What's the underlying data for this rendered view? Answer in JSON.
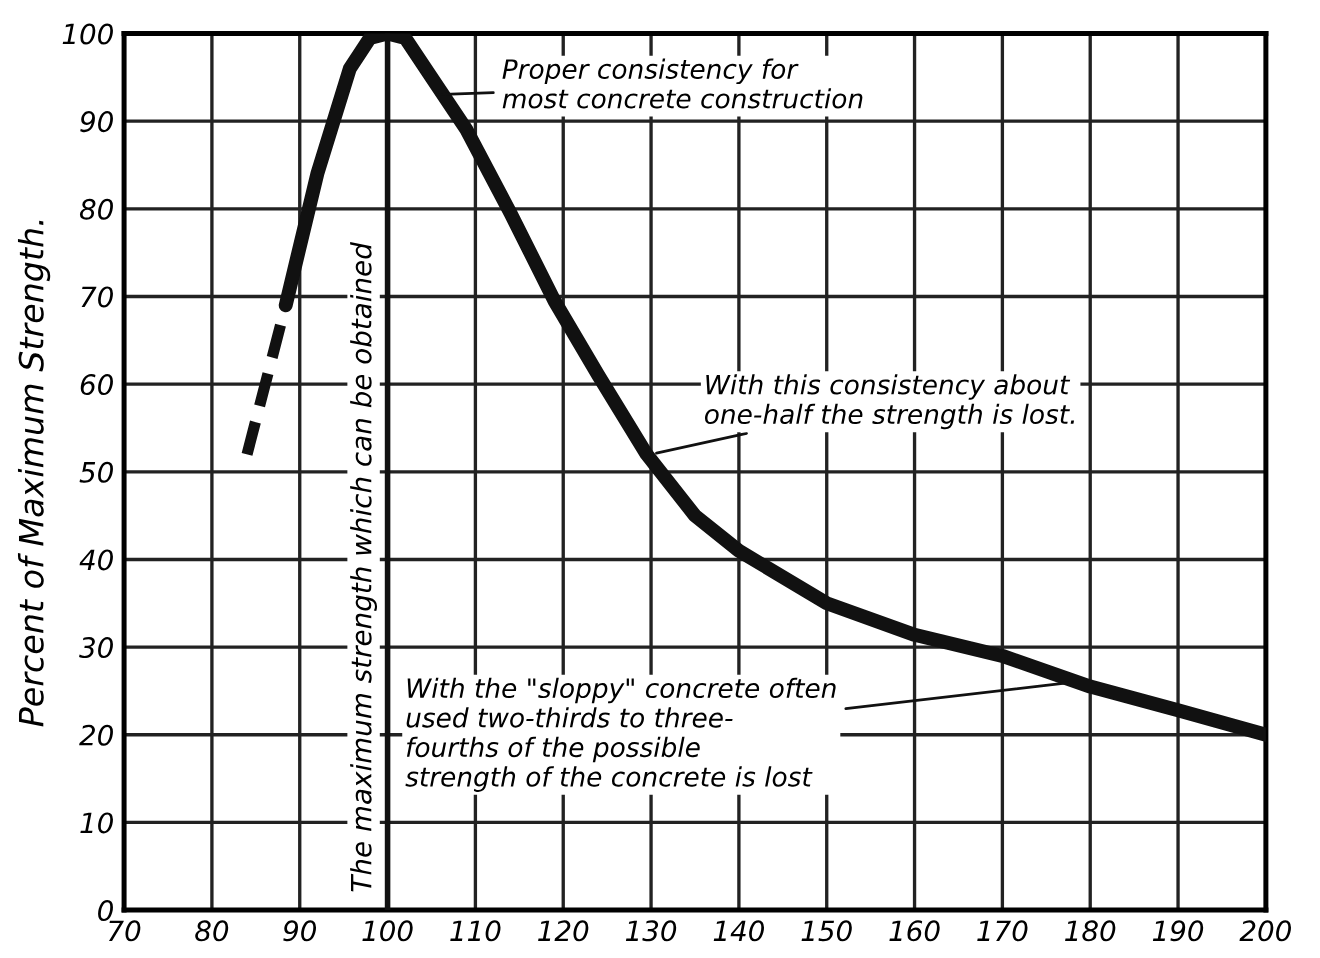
{
  "chart_data": {
    "type": "line",
    "ylabel": "Percent of Maximum Strength.",
    "xlim": [
      70,
      200
    ],
    "xticks": [
      70,
      80,
      90,
      100,
      110,
      120,
      130,
      140,
      150,
      160,
      170,
      180,
      190,
      200
    ],
    "ylim": [
      0,
      100
    ],
    "yticks": [
      0,
      10,
      20,
      30,
      40,
      50,
      60,
      70,
      80,
      90,
      100
    ],
    "grid": true,
    "marker": "none",
    "series": [
      {
        "color": "#111111",
        "line_style": "dashed",
        "x": [
          84,
          88.4
        ],
        "values": [
          52,
          69
        ]
      },
      {
        "color": "#111111",
        "line_style": "solid",
        "x": [
          88.4,
          92,
          95.7,
          98,
          100,
          102,
          105,
          109,
          114,
          119,
          124,
          129.5,
          135,
          140,
          150,
          160,
          170,
          180,
          190,
          200
        ],
        "values": [
          69,
          84,
          96,
          99.5,
          100,
          99.5,
          95,
          89,
          79.5,
          69.5,
          61,
          52,
          45,
          41,
          35,
          31.4,
          29,
          25.5,
          22.8,
          20
        ]
      }
    ],
    "ref_lines": [
      {
        "axis": "x",
        "value": 100,
        "label": "The maximum strength which can be obtained",
        "color": "#111111"
      }
    ],
    "annotations": [
      {
        "text": "Proper consistency for\nmost concrete construction",
        "x": 105,
        "y": 93
      },
      {
        "text": "With this consistency about\none-half the strength is lost.",
        "x": 130,
        "y": 52
      },
      {
        "text": "With the \"sloppy\" concrete often\nused two-thirds to three-\nfourths of the possible\nstrength of the concrete is lost",
        "x": 178,
        "y": 26
      }
    ]
  }
}
